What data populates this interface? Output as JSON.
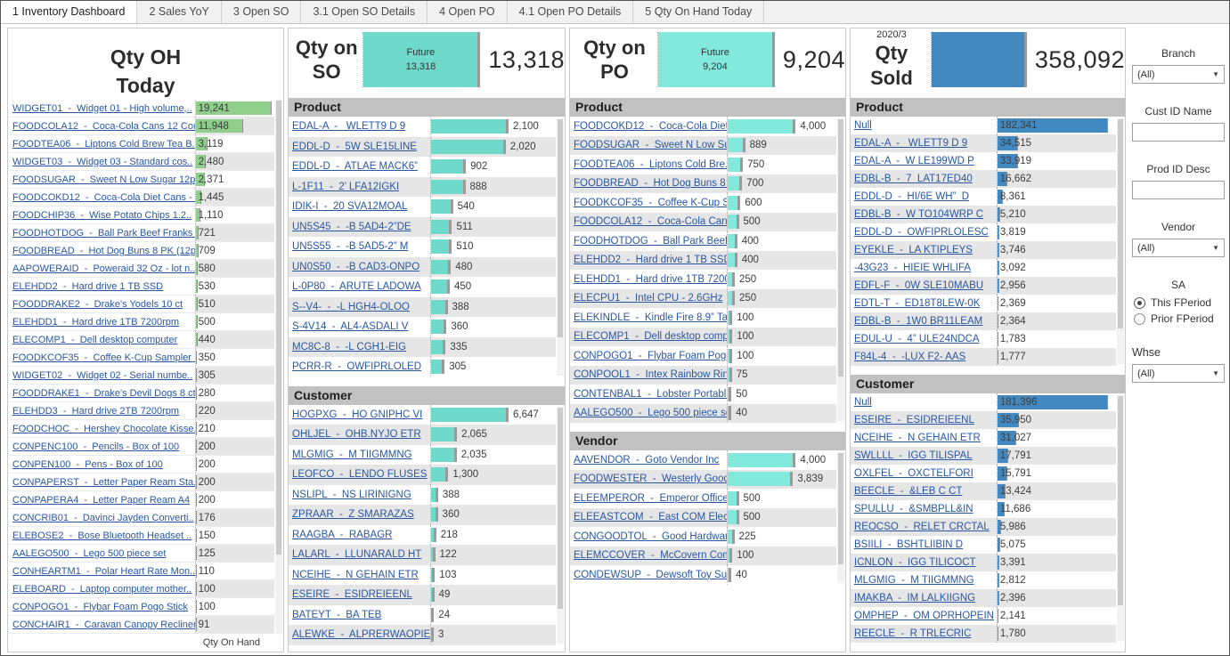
{
  "tabs": [
    {
      "label": "1 Inventory Dashboard",
      "active": true
    },
    {
      "label": "2 Sales YoY",
      "active": false
    },
    {
      "label": "3 Open SO",
      "active": false
    },
    {
      "label": "3.1 Open SO Details",
      "active": false
    },
    {
      "label": "4 Open PO",
      "active": false
    },
    {
      "label": "4.1 Open PO Details",
      "active": false
    },
    {
      "label": "5 Qty On Hand Today",
      "active": false
    }
  ],
  "colors": {
    "oh_green": "#8fce8b",
    "so_teal": "#6fd9cc",
    "po_teal": "#82e9dc",
    "sold_blue": "#4289c2",
    "bar_cap": "#9a9a9a",
    "link": "#2857a4",
    "band": "#e6e6e6",
    "section_header_bg": "#c1c1c1"
  },
  "qty_oh_panel": {
    "title_line1": "Qty OH",
    "title_line2": "Today",
    "axis_label": "Qty On Hand",
    "rows": [
      {
        "label": "WIDGET01  -  Widget 01 - High volume,..",
        "value": "19,241",
        "v": 19241
      },
      {
        "label": "FOODCOLA12  -  Coca-Cola Cans 12 Cou..",
        "value": "11,948",
        "v": 11948
      },
      {
        "label": "FOODTEA06  -  Liptons Cold Brew Tea B..",
        "value": "3,119",
        "v": 3119
      },
      {
        "label": "WIDGET03  -  Widget 03 - Standard cos..",
        "value": "2,480",
        "v": 2480
      },
      {
        "label": "FOODSUGAR  -  Sweet N Low Sugar 12pk",
        "value": "2,371",
        "v": 2371
      },
      {
        "label": "FOODCOKD12  -  Coca-Cola Diet Cans - ..",
        "value": "1,445",
        "v": 1445
      },
      {
        "label": "FOODCHIP36  -  Wise Potato Chips 1.2..",
        "value": "1,110",
        "v": 1110
      },
      {
        "label": "FOODHOTDOG  -  Ball Park Beef Franks ..",
        "value": "721",
        "v": 721
      },
      {
        "label": "FOODBREAD  -  Hot Dog Buns 8 PK (12p..",
        "value": "709",
        "v": 709
      },
      {
        "label": "AAPOWERAID  -  Poweraid 32 Oz - lot n..",
        "value": "580",
        "v": 580
      },
      {
        "label": "ELEHDD2  -  Hard drive 1 TB SSD",
        "value": "530",
        "v": 530
      },
      {
        "label": "FOODDRAKE2  -  Drake's Yodels 10 ct",
        "value": "510",
        "v": 510
      },
      {
        "label": "ELEHDD1  -  Hard drive 1TB 7200rpm",
        "value": "500",
        "v": 500
      },
      {
        "label": "ELECOMP1  -  Dell desktop computer",
        "value": "440",
        "v": 440
      },
      {
        "label": "FOODKCOF35  -  Coffee K-Cup Sampler ..",
        "value": "350",
        "v": 350
      },
      {
        "label": "WIDGET02  -  Widget 02 - Serial numbe..",
        "value": "305",
        "v": 305
      },
      {
        "label": "FOODDRAKE1  -  Drake's Devil Dogs 8 ct",
        "value": "280",
        "v": 280
      },
      {
        "label": "ELEHDD3  -  Hard drive 2TB 7200rpm",
        "value": "220",
        "v": 220
      },
      {
        "label": "FOODCHOC  -  Hershey Chocolate Kisse..",
        "value": "210",
        "v": 210
      },
      {
        "label": "CONPENC100  -  Pencils - Box of 100",
        "value": "200",
        "v": 200
      },
      {
        "label": "CONPEN100  -  Pens - Box of 100",
        "value": "200",
        "v": 200
      },
      {
        "label": "CONPAPERST  -  Letter Paper Ream Sta..",
        "value": "200",
        "v": 200
      },
      {
        "label": "CONPAPERA4  -  Letter Paper Ream A4",
        "value": "200",
        "v": 200
      },
      {
        "label": "CONCRIB01  -  Davinci Jayden Converti..",
        "value": "176",
        "v": 176
      },
      {
        "label": "ELEBOSE2  -  Bose Bluetooth Headset ..",
        "value": "150",
        "v": 150
      },
      {
        "label": "AALEGO500  -  Lego 500 piece set",
        "value": "125",
        "v": 125
      },
      {
        "label": "CONHEARTM1  -  Polar Heart Rate Mon..",
        "value": "110",
        "v": 110
      },
      {
        "label": "ELEBOARD  -  Laptop computer mother..",
        "value": "100",
        "v": 100
      },
      {
        "label": "CONPOGO1  -  Flybar Foam Pogo Stick",
        "value": "100",
        "v": 100
      },
      {
        "label": "CONCHAIR1  -  Caravan Canopy Recliner",
        "value": "91",
        "v": 91
      }
    ]
  },
  "qty_so_panel": {
    "title_line1": "Qty on",
    "title_line2": "SO",
    "future_block": {
      "line1": "Future",
      "line2": "13,318"
    },
    "total": "13,318",
    "sections": [
      {
        "title": "Product",
        "rows": [
          {
            "label": "EDAL-A  -   WLETT9 D 9",
            "value": "2,100",
            "v": 2100
          },
          {
            "label": "EDDL-D  -  5W SLE15LINE",
            "value": "2,020",
            "v": 2020
          },
          {
            "label": "EDDL-D  -  ATLAE MACK6”",
            "value": "902",
            "v": 902
          },
          {
            "label": "L-1F11  -  2’ LFA12IGKI",
            "value": "888",
            "v": 888
          },
          {
            "label": "IDIK-I  -  20 SVA12MOAL",
            "value": "540",
            "v": 540
          },
          {
            "label": "UN5S45  -  -B 5AD4-2”DE",
            "value": "511",
            "v": 511
          },
          {
            "label": "UN5S55  -  -B 5AD5-2” M",
            "value": "510",
            "v": 510
          },
          {
            "label": "UN0S50  -  -B CAD3-ONPO",
            "value": "480",
            "v": 480
          },
          {
            "label": "L-0P80  -  ARUTE LADOWA",
            "value": "450",
            "v": 450
          },
          {
            "label": "S--V4-  -  -L HGH4-OLOO",
            "value": "388",
            "v": 388
          },
          {
            "label": "S-4V14  -  AL4-ASDALI V",
            "value": "360",
            "v": 360
          },
          {
            "label": "MC8C-8  -  -L CGH1-EIG",
            "value": "335",
            "v": 335
          },
          {
            "label": "PCRR-R  -  OWFIPRLOLED",
            "value": "305",
            "v": 305
          }
        ]
      },
      {
        "title": "Customer",
        "rows": [
          {
            "label": "HOGPXG  -  HO GNIPHC VI",
            "value": "6,647",
            "v": 6647
          },
          {
            "label": "OHLJEL  -  OHB.NYJO ETR",
            "value": "2,065",
            "v": 2065
          },
          {
            "label": "MLGMIG  -  M TIIGMMNG",
            "value": "2,035",
            "v": 2035
          },
          {
            "label": "LEOFCO  -  LENDO FLUSES",
            "value": "1,300",
            "v": 1300
          },
          {
            "label": "NSLIPL  -  NS LIRINIGNG",
            "value": "388",
            "v": 388
          },
          {
            "label": "ZPRAAR  -  Z SMARAZAS",
            "value": "360",
            "v": 360
          },
          {
            "label": "RAAGBA  -  RABAGR",
            "value": "218",
            "v": 218
          },
          {
            "label": "LALARL  -  LLUNARALD HT",
            "value": "122",
            "v": 122
          },
          {
            "label": "NCEIHE  -  N GEHAIN ETR",
            "value": "103",
            "v": 103
          },
          {
            "label": "ESEIRE  -  ESIDREIEENL",
            "value": "49",
            "v": 49
          },
          {
            "label": "BATEYT  -  BA TEB",
            "value": "24",
            "v": 24
          },
          {
            "label": "ALEWKE  -  ALPRERWAOPIE",
            "value": "3",
            "v": 3
          }
        ]
      }
    ]
  },
  "qty_po_panel": {
    "title_line1": "Qty on",
    "title_line2": "PO",
    "future_block": {
      "line1": "Future",
      "line2": "9,204"
    },
    "total": "9,204",
    "sections": [
      {
        "title": "Product",
        "rows": [
          {
            "label": "FOODCOKD12  -  Coca-Cola Diet C..",
            "value": "4,000",
            "v": 4000
          },
          {
            "label": "FOODSUGAR  -  Sweet N Low Sug..",
            "value": "889",
            "v": 889
          },
          {
            "label": "FOODTEA06  -  Liptons Cold Bre..",
            "value": "750",
            "v": 750
          },
          {
            "label": "FOODBREAD  -  Hot Dog Buns 8 P..",
            "value": "700",
            "v": 700
          },
          {
            "label": "FOODKCOF35  -  Coffee K-Cup Sa..",
            "value": "600",
            "v": 600
          },
          {
            "label": "FOODCOLA12  -  Coca-Cola Cans ..",
            "value": "500",
            "v": 500
          },
          {
            "label": "FOODHOTDOG  -  Ball Park Beef ..",
            "value": "400",
            "v": 400
          },
          {
            "label": "ELEHDD2  -  Hard drive 1 TB SSD",
            "value": "400",
            "v": 400
          },
          {
            "label": "ELEHDD1  -  Hard drive 1TB 7200..",
            "value": "250",
            "v": 250
          },
          {
            "label": "ELECPU1  -  Intel CPU - 2.6GHz",
            "value": "250",
            "v": 250
          },
          {
            "label": "ELEKINDLE  -  Kindle Fire 8.9” Ta..",
            "value": "100",
            "v": 100
          },
          {
            "label": "ELECOMP1  -  Dell desktop comp..",
            "value": "100",
            "v": 100
          },
          {
            "label": "CONPOGO1  -  Flybar Foam Pogo ..",
            "value": "100",
            "v": 100
          },
          {
            "label": "CONPOOL1  -  Intex Rainbow Rin..",
            "value": "75",
            "v": 75
          },
          {
            "label": "CONTENBAL1  -  Lobster Portabl..",
            "value": "50",
            "v": 50
          },
          {
            "label": "AALEGO500  -  Lego 500 piece set",
            "value": "40",
            "v": 40
          }
        ]
      },
      {
        "title": "Vendor",
        "rows": [
          {
            "label": "AAVENDOR  -  Goto Vendor Inc",
            "value": "4,000",
            "v": 4000
          },
          {
            "label": "FOODWESTER  -  Westerly Good ..",
            "value": "3,839",
            "v": 3839
          },
          {
            "label": "ELEEMPEROR  -  Emperor Office ..",
            "value": "500",
            "v": 500
          },
          {
            "label": "ELEEASTCOM  -  East COM Electr..",
            "value": "500",
            "v": 500
          },
          {
            "label": "CONGOODTOL  -  Good Hardware..",
            "value": "225",
            "v": 225
          },
          {
            "label": "ELEMCCOVER  -  McCovern Comp..",
            "value": "100",
            "v": 100
          },
          {
            "label": "CONDEWSUP  -  Dewsoft Toy Su..",
            "value": "40",
            "v": 40
          }
        ]
      }
    ]
  },
  "qty_sold_panel": {
    "period": "2020/3",
    "title": "Qty Sold",
    "total": "358,092",
    "sections": [
      {
        "title": "Product",
        "rows": [
          {
            "label": "Null",
            "value": "182,341",
            "v": 182341
          },
          {
            "label": "EDAL-A  -   WLETT9 D 9",
            "value": "34,515",
            "v": 34515
          },
          {
            "label": "EDAL-A  -  W LE199WD P",
            "value": "33,919",
            "v": 33919
          },
          {
            "label": "EDBL-B  -  7  LAT17ED40",
            "value": "16,662",
            "v": 16662
          },
          {
            "label": "EDDL-D  -  HI/6E WH”  D",
            "value": "8,361",
            "v": 8361
          },
          {
            "label": "EDBL-B  -  W TO104WRP C",
            "value": "5,210",
            "v": 5210
          },
          {
            "label": "EDDL-D  -  OWFIPRLOLESC",
            "value": "3,819",
            "v": 3819
          },
          {
            "label": "EYEKLE  -  LA KTIPLEYS",
            "value": "3,746",
            "v": 3746
          },
          {
            "label": "-43G23  -  HIEIE WHLIFA",
            "value": "3,092",
            "v": 3092
          },
          {
            "label": "EDFL-F  -  0W SLE10MABU",
            "value": "2,956",
            "v": 2956
          },
          {
            "label": "EDTL-T  -  ED18T8LEW-0K",
            "value": "2,369",
            "v": 2369
          },
          {
            "label": "EDBL-B  -  1W0 BR11LEAM",
            "value": "2,364",
            "v": 2364
          },
          {
            "label": "EDUL-U  -  4” ULE24NDCA",
            "value": "1,783",
            "v": 1783
          },
          {
            "label": "F84L-4  -  -LUX F2- AAS",
            "value": "1,777",
            "v": 1777
          }
        ]
      },
      {
        "title": "Customer",
        "rows": [
          {
            "label": "Null",
            "value": "181,396",
            "v": 181396
          },
          {
            "label": "ESEIRE  -  ESIDREIEENL",
            "value": "35,950",
            "v": 35950
          },
          {
            "label": "NCEIHE  -  N GEHAIN ETR",
            "value": "31,027",
            "v": 31027
          },
          {
            "label": "SWLLLL  -  IGG TILISPAL",
            "value": "17,791",
            "v": 17791
          },
          {
            "label": "OXLFEL  -  OXCTELFORI",
            "value": "15,791",
            "v": 15791
          },
          {
            "label": "BEECLE  -  &LEB C CT",
            "value": "13,424",
            "v": 13424
          },
          {
            "label": "SPULLU  -  &SMBPLL&IN",
            "value": "11,686",
            "v": 11686
          },
          {
            "label": "REOCSO  -  RELET CRCTAL",
            "value": "5,986",
            "v": 5986
          },
          {
            "label": "BSIILI  -  BSHTLIIBIN D",
            "value": "5,075",
            "v": 5075
          },
          {
            "label": "ICNLON  -  IGG TILICOCT",
            "value": "3,391",
            "v": 3391
          },
          {
            "label": "MLGMIG  -  M TIIGMMNG",
            "value": "2,812",
            "v": 2812
          },
          {
            "label": "IMAKBA  -  IM LALKIIGNG",
            "value": "2,396",
            "v": 2396
          },
          {
            "label": "OMPHEP  -  OM OPRHOPEIN",
            "value": "2,141",
            "v": 2141
          },
          {
            "label": "REECLE  -  R TRLECRIC",
            "value": "1,780",
            "v": 1780
          }
        ]
      }
    ]
  },
  "filters": {
    "branch": {
      "label": "Branch",
      "value": "(All)"
    },
    "cust_id_name": {
      "label": "Cust ID Name",
      "value": ""
    },
    "prod_id_desc": {
      "label": "Prod ID Desc",
      "value": ""
    },
    "vendor": {
      "label": "Vendor",
      "value": "(All)"
    },
    "sa": {
      "label": "SA",
      "options": [
        {
          "label": "This FPeriod",
          "selected": true
        },
        {
          "label": "Prior FPeriod",
          "selected": false
        }
      ]
    },
    "whse": {
      "label": "Whse",
      "value": "(All)"
    }
  }
}
